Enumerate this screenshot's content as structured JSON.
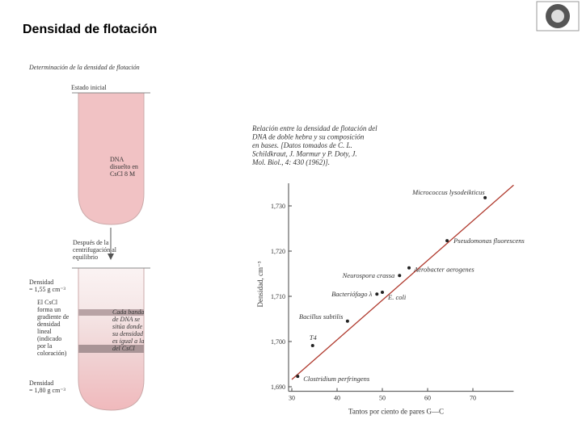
{
  "header": {
    "title": "Densidad de flotación"
  },
  "figure_left": {
    "title": "Determinación de la densidad de flotación",
    "initial_state": "Estado inicial",
    "dna_label": [
      "DNA",
      "disuelto en",
      "CsCl 8 M"
    ],
    "after_label": [
      "Después de la",
      "centrifugación al",
      "equilibrio"
    ],
    "density_top": [
      "Densidad",
      "= 1,55 g cm⁻³"
    ],
    "gradient_label": [
      "El CsCl",
      "forma un",
      "gradiente de",
      "densidad",
      "lineal",
      "(indicado",
      "por la",
      "coloración)"
    ],
    "band_label": [
      "Cada banda",
      "de DNA se",
      "sitúa donde",
      "su densidad",
      "es igual a la",
      "del CsCl"
    ],
    "density_bottom": [
      "Densidad",
      "= 1,80 g cm⁻³"
    ]
  },
  "caption": [
    "Relación entre la densidad de flotación del",
    "DNA de doble hebra y su composición",
    "en bases. [Datos tomados de C. L.",
    "Schildkraut, J. Marmur y P. Doty, J.",
    "Mol. Biol., 4: 430 (1962)]."
  ],
  "chart_data": {
    "type": "scatter",
    "xlabel": "Tantos por ciento de pares G—C",
    "ylabel": "Densidad, cm⁻³",
    "categories": [
      "Clostridium perfringens",
      "T4",
      "Bacillus subtilis",
      "Bacteriófago λ",
      "E. coli",
      "Neurospora crassa",
      "Aerobacter aerogenes",
      "Pseudomonas fluorescens",
      "Micrococcus lysodeikticus"
    ],
    "x": [
      31.3,
      34.6,
      42.3,
      48.8,
      50,
      53.8,
      55.9,
      64.3,
      72.7
    ],
    "values": [
      1.6923,
      1.6991,
      1.7045,
      1.7105,
      1.7109,
      1.7146,
      1.7163,
      1.7223,
      1.7318
    ],
    "color": "#222222",
    "line": {
      "x": [
        30,
        79
      ],
      "values": [
        1.6916,
        1.7346
      ],
      "color": "#b03a2e"
    },
    "xlim": [
      30,
      79
    ],
    "ylim": [
      1.689,
      1.735
    ],
    "xticks": [
      30,
      40,
      50,
      60,
      70
    ],
    "yticks": [
      {
        "value": 1.69,
        "label": "1,690"
      },
      {
        "value": 1.7,
        "label": "1,700"
      },
      {
        "value": 1.71,
        "label": "1,710"
      },
      {
        "value": 1.72,
        "label": "1,720"
      },
      {
        "value": 1.73,
        "label": "1,730"
      }
    ]
  }
}
